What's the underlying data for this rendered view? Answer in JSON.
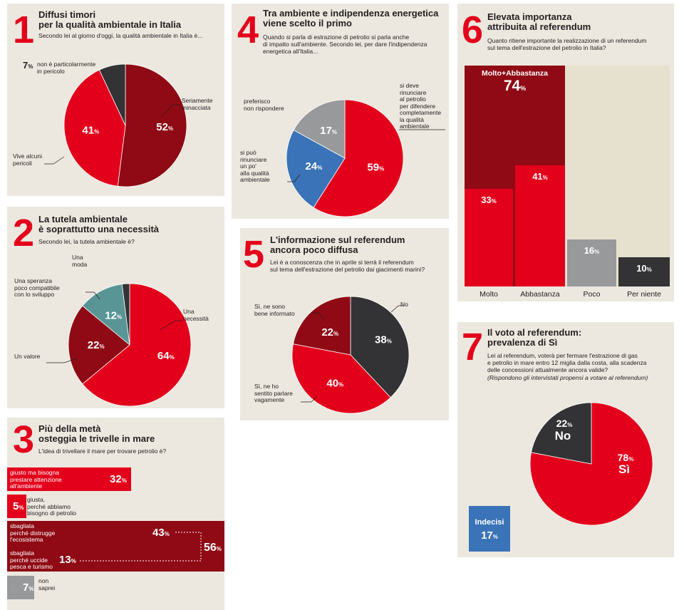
{
  "colors": {
    "red": "#e3001b",
    "darkred": "#8f0a14",
    "gray": "#98999b",
    "darkgray": "#333335",
    "teal": "#5a9596",
    "blue": "#3a73b7",
    "beige": "#e6e1cf"
  },
  "p1": {
    "num": "1",
    "title": "Diffusi timori\nper la qualità ambientale in Italia",
    "subtitle": "Secondo lei al giorno d'oggi, la qualità ambientale in Italia è...",
    "slices": [
      {
        "label": "Seriamente\nminacciata",
        "value": 52
      },
      {
        "label": "Vive alcuni\npericoli",
        "value": 41
      },
      {
        "label": "non è particolarmente\nin pericolo",
        "value": 7
      }
    ]
  },
  "p2": {
    "num": "2",
    "title": "La tutela ambientale\nè soprattutto una necessità",
    "subtitle": "Secondo lei, la tutela ambientale è?",
    "slices": [
      {
        "label": "Una\nnecessità",
        "value": 64
      },
      {
        "label": "Un valore",
        "value": 22
      },
      {
        "label": "Una speranza\npoco compatibile\ncon lo sviluppo",
        "value": 12
      },
      {
        "label": "Una\nmoda",
        "value": 2
      }
    ]
  },
  "p3": {
    "num": "3",
    "title": "Più della metà\nosteggia le trivelle in mare",
    "subtitle": "L'idea di trivellare il mare per trovare petrolio è?",
    "bars": [
      {
        "label": "giusto ma bisogna\nprestare attenzione\nall'ambiente",
        "value": 32
      },
      {
        "label": "giusta,\nperché abbiamo\nbisogno di petrolio",
        "value": 5
      },
      {
        "label": "sbagliata\nperché distrugge\nl'ecosistema",
        "value": 43
      },
      {
        "label": "sbagliata\nperché uccide\npesca e turismo",
        "value": 13
      },
      {
        "label": "non\nsaprei",
        "value": 7
      }
    ],
    "total_label": "56"
  },
  "p4": {
    "num": "4",
    "title": "Tra ambiente e indipendenza energetica\nviene scelto il primo",
    "subtitle": "Quando si parla di estrazione di petrolio si parla anche\ndi impatto sull'ambiente. Secondo lei, per dare l'indipendenza\nenergetica all'Italia...",
    "slices": [
      {
        "label": "si deve\nrinunciare\nal petrolio\nper difendere\ncompletamente\nla qualità\nambientale",
        "value": 59
      },
      {
        "label": "si può\nrinunciare\nun po'\nalla qualità\nambientale",
        "value": 24
      },
      {
        "label": "preferisco\nnon rispondere",
        "value": 17
      }
    ]
  },
  "p5": {
    "num": "5",
    "title": "L'informazione sul referendum\nancora poco diffusa",
    "subtitle": "Lei è a conoscenza che in aprile si terrà il referendum\nsul tema dell'estrazione del petrolio dai giacimenti marini?",
    "slices": [
      {
        "label": "No",
        "value": 38
      },
      {
        "label": "Sì, ne ho\nsentito parlare\nvagamente",
        "value": 40
      },
      {
        "label": "Sì, ne sono\nbene informato",
        "value": 22
      }
    ]
  },
  "p6": {
    "num": "6",
    "title": "Elevata importanza\nattribuita al referendum",
    "subtitle": "Quanto ritiene importante la realizzazione di un referendum\nsul tema dell'estrazione del petrolio in Italia?",
    "combined_label": "Molto+Abbastanza",
    "combined_value": "74",
    "categories": [
      "Molto",
      "Abbastanza",
      "Poco",
      "Per niente"
    ],
    "values": [
      33,
      41,
      16,
      10
    ]
  },
  "p7": {
    "num": "7",
    "title": "Il voto al referendum:\nprevalenza di Sì",
    "subtitle": "Lei al referendum, voterà per fermare l'estrazione di gas\ne petrolio in mare entro 12 miglia dalla costa, alla scadenza\ndelle concessioni attualmente ancora valide?",
    "note": "(Rispondono gli intervistati propensi a votare al referendum)",
    "slices": [
      {
        "label": "Sì",
        "value": 78
      },
      {
        "label": "No",
        "value": 22
      }
    ],
    "undecided_label": "Indecisi",
    "undecided_value": "17"
  },
  "pct_symbol": "%",
  "chart_data": [
    {
      "type": "pie",
      "title": "Diffusi timori per la qualità ambientale in Italia",
      "categories": [
        "Seriamente minacciata",
        "Vive alcuni pericoli",
        "non è particolarmente in pericolo"
      ],
      "values": [
        52,
        41,
        7
      ]
    },
    {
      "type": "pie",
      "title": "La tutela ambientale è soprattutto una necessità",
      "categories": [
        "Una necessità",
        "Un valore",
        "Una speranza poco compatibile con lo sviluppo",
        "Una moda"
      ],
      "values": [
        64,
        22,
        12,
        2
      ]
    },
    {
      "type": "bar",
      "title": "Più della metà osteggia le trivelle in mare",
      "categories": [
        "giusto ma bisogna prestare attenzione all'ambiente",
        "giusta, perché abbiamo bisogno di petrolio",
        "sbagliata perché distrugge l'ecosistema",
        "sbagliata perché uccide pesca e turismo",
        "non saprei"
      ],
      "values": [
        32,
        5,
        43,
        13,
        7
      ]
    },
    {
      "type": "pie",
      "title": "Tra ambiente e indipendenza energetica viene scelto il primo",
      "categories": [
        "si deve rinunciare al petrolio per difendere completamente la qualità ambientale",
        "si può rinunciare un po' alla qualità ambientale",
        "preferisco non rispondere"
      ],
      "values": [
        59,
        24,
        17
      ]
    },
    {
      "type": "pie",
      "title": "L'informazione sul referendum ancora poco diffusa",
      "categories": [
        "No",
        "Sì, ne ho sentito parlare vagamente",
        "Sì, ne sono bene informato"
      ],
      "values": [
        38,
        40,
        22
      ]
    },
    {
      "type": "bar",
      "title": "Elevata importanza attribuita al referendum",
      "categories": [
        "Molto",
        "Abbastanza",
        "Poco",
        "Per niente"
      ],
      "values": [
        33,
        41,
        16,
        10
      ]
    },
    {
      "type": "pie",
      "title": "Il voto al referendum: prevalenza di Sì",
      "categories": [
        "Sì",
        "No"
      ],
      "values": [
        78,
        22
      ]
    }
  ]
}
